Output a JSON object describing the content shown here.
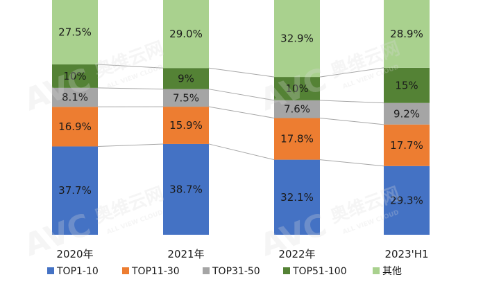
{
  "chart_data": {
    "type": "bar",
    "stacked": true,
    "percent": true,
    "categories": [
      "2020年",
      "2021年",
      "2022年",
      "2023'H1"
    ],
    "series": [
      {
        "name": "TOP1-10",
        "color": "#4472C4",
        "values": [
          37.7,
          38.7,
          32.1,
          29.3
        ],
        "labels": [
          "37.7%",
          "38.7%",
          "32.1%",
          "29.3%"
        ]
      },
      {
        "name": "TOP11-30",
        "color": "#ED7D31",
        "values": [
          16.9,
          15.9,
          17.8,
          17.7
        ],
        "labels": [
          "16.9%",
          "15.9%",
          "17.8%",
          "17.7%"
        ]
      },
      {
        "name": "TOP31-50",
        "color": "#A5A5A5",
        "values": [
          8.1,
          7.5,
          7.6,
          9.2
        ],
        "labels": [
          "8.1%",
          "7.5%",
          "7.6%",
          "9.2%"
        ]
      },
      {
        "name": "TOP51-100",
        "color": "#548235",
        "values": [
          10,
          9,
          10,
          15
        ],
        "labels": [
          "10%",
          "9%",
          "10%",
          "15%"
        ]
      },
      {
        "name": "其他",
        "color": "#A9D18E",
        "values": [
          27.5,
          29.0,
          32.9,
          28.9
        ],
        "labels": [
          "27.5%",
          "29.0%",
          "32.9%",
          "28.9%"
        ]
      }
    ],
    "series_lines": true,
    "legend_position": "bottom"
  },
  "watermark": {
    "logo": "AVC",
    "cn": "奥维云网",
    "en": "ALL VIEW CLOUD"
  }
}
